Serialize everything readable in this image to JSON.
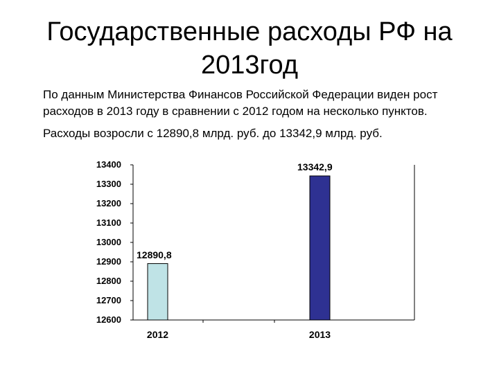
{
  "title_line1": "Государственные расходы РФ на",
  "title_line2": "2013год",
  "paragraph1": "По данным Министерства Финансов Российской Федерации виден рост расходов в 2013 году в сравнении с 2012 годом на несколько пунктов.",
  "paragraph2": "Расходы возросли с 12890,8 млрд. руб. до 13342,9 млрд. руб.",
  "chart_data": {
    "type": "bar",
    "categories": [
      "2012",
      "2013"
    ],
    "values": [
      12890.8,
      13342.9
    ],
    "data_labels": [
      "12890,8",
      "13342,9"
    ],
    "bar_colors": [
      "#bfe3e6",
      "#2e3192"
    ],
    "yticks": [
      "12600",
      "12700",
      "12800",
      "12900",
      "13000",
      "13100",
      "13200",
      "13300",
      "13400"
    ],
    "ylim": [
      12600,
      13400
    ],
    "grid": false,
    "legend": "none"
  }
}
